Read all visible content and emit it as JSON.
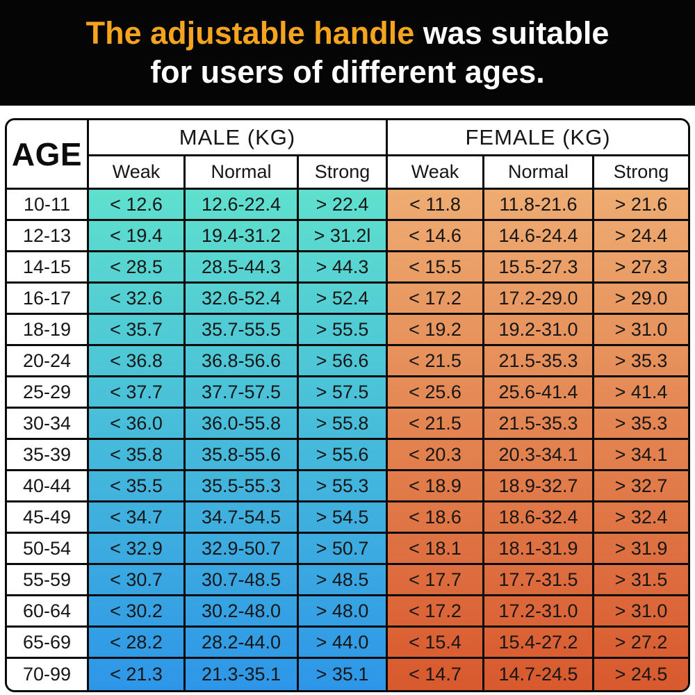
{
  "banner": {
    "line1_highlight": "The adjustable handle",
    "line1_rest": " was suitable",
    "line2": "for users of different ages."
  },
  "colors": {
    "banner_bg": "#050505",
    "highlight_orange": "#f5a41f",
    "banner_text": "#ffffff",
    "border": "#0a0a0a",
    "header_bg": "#ffffff",
    "male_gradient_top": "#5fe0cd",
    "male_gradient_bottom": "#2e96e8",
    "female_gradient_top": "#eeac72",
    "female_gradient_bottom": "#d8592e"
  },
  "chart_data": {
    "type": "table",
    "title": "The adjustable handle was suitable for users of different ages.",
    "column_groups": [
      "MALE (KG)",
      "FEMALE (KG)"
    ],
    "columns": [
      "AGE",
      "Weak",
      "Normal",
      "Strong",
      "Weak",
      "Normal",
      "Strong"
    ],
    "rows": [
      [
        "10-11",
        "< 12.6",
        "12.6-22.4",
        "> 22.4",
        "< 11.8",
        "11.8-21.6",
        "> 21.6"
      ],
      [
        "12-13",
        "< 19.4",
        "19.4-31.2",
        "> 31.2l",
        "< 14.6",
        "14.6-24.4",
        "> 24.4"
      ],
      [
        "14-15",
        "< 28.5",
        "28.5-44.3",
        "> 44.3",
        "< 15.5",
        "15.5-27.3",
        "> 27.3"
      ],
      [
        "16-17",
        "< 32.6",
        "32.6-52.4",
        "> 52.4",
        "< 17.2",
        "17.2-29.0",
        "> 29.0"
      ],
      [
        "18-19",
        "< 35.7",
        "35.7-55.5",
        "> 55.5",
        "< 19.2",
        "19.2-31.0",
        "> 31.0"
      ],
      [
        "20-24",
        "< 36.8",
        "36.8-56.6",
        "> 56.6",
        "< 21.5",
        "21.5-35.3",
        "> 35.3"
      ],
      [
        "25-29",
        "< 37.7",
        "37.7-57.5",
        "> 57.5",
        "< 25.6",
        "25.6-41.4",
        "> 41.4"
      ],
      [
        "30-34",
        "< 36.0",
        "36.0-55.8",
        "> 55.8",
        "< 21.5",
        "21.5-35.3",
        "> 35.3"
      ],
      [
        "35-39",
        "< 35.8",
        "35.8-55.6",
        "> 55.6",
        "< 20.3",
        "20.3-34.1",
        "> 34.1"
      ],
      [
        "40-44",
        "< 35.5",
        "35.5-55.3",
        "> 55.3",
        "< 18.9",
        "18.9-32.7",
        "> 32.7"
      ],
      [
        "45-49",
        "< 34.7",
        "34.7-54.5",
        "> 54.5",
        "< 18.6",
        "18.6-32.4",
        "> 32.4"
      ],
      [
        "50-54",
        "< 32.9",
        "32.9-50.7",
        "> 50.7",
        "< 18.1",
        "18.1-31.9",
        "> 31.9"
      ],
      [
        "55-59",
        "< 30.7",
        "30.7-48.5",
        "> 48.5",
        "< 17.7",
        "17.7-31.5",
        "> 31.5"
      ],
      [
        "60-64",
        "< 30.2",
        "30.2-48.0",
        "> 48.0",
        "< 17.2",
        "17.2-31.0",
        "> 31.0"
      ],
      [
        "65-69",
        "< 28.2",
        "28.2-44.0",
        "> 44.0",
        "< 15.4",
        "15.4-27.2",
        "> 27.2"
      ],
      [
        "70-99",
        "< 21.3",
        "21.3-35.1",
        "> 35.1",
        "< 14.7",
        "14.7-24.5",
        "> 24.5"
      ]
    ]
  }
}
